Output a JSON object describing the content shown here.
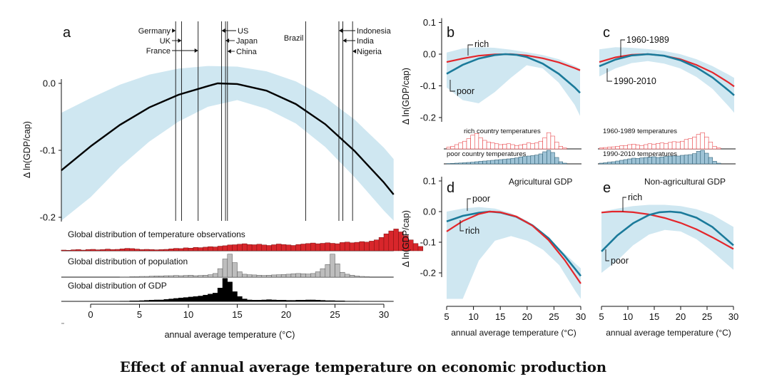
{
  "caption": "Effect of annual average temperature on economic production",
  "colors": {
    "band": "#cfe7f1",
    "main_curve": "#000000",
    "teal": "#1b7a9a",
    "red": "#e4262b",
    "hist_temp": "#d8262b",
    "hist_pop": "#bdbdbd",
    "hist_gdp": "#000000",
    "hist_poor": "#9ec3d6"
  },
  "chart_data": [
    {
      "panel": "a",
      "type": "line",
      "xlabel": "annual average temperature (°C)",
      "ylabel": "Δ ln(GDP/cap)",
      "xlim": [
        -3,
        31
      ],
      "ylim": [
        -0.205,
        0.035
      ],
      "xticks": [
        0,
        5,
        10,
        15,
        20,
        25,
        30
      ],
      "yticks": [
        0.0,
        -0.1,
        -0.2
      ],
      "ytick_labels": [
        "0.0",
        "-0.1",
        "-0.2"
      ],
      "series": [
        {
          "x": [
            -3,
            0,
            3,
            6,
            9,
            12,
            13,
            15,
            18,
            21,
            24,
            27,
            30,
            31
          ],
          "y": [
            -0.13,
            -0.094,
            -0.062,
            -0.036,
            -0.017,
            -0.004,
            -0.0,
            -0.001,
            -0.011,
            -0.031,
            -0.061,
            -0.101,
            -0.148,
            -0.166
          ]
        }
      ],
      "confidence_band": {
        "x": [
          -3,
          0,
          3,
          6,
          9,
          12,
          15,
          18,
          21,
          24,
          27,
          30,
          31
        ],
        "upper": [
          -0.044,
          -0.022,
          -0.002,
          0.013,
          0.022,
          0.026,
          0.025,
          0.018,
          0.003,
          -0.021,
          -0.054,
          -0.096,
          -0.113
        ],
        "lower": [
          -0.205,
          -0.17,
          -0.125,
          -0.087,
          -0.057,
          -0.035,
          -0.025,
          -0.038,
          -0.06,
          -0.095,
          -0.14,
          -0.19,
          -0.205
        ]
      },
      "countries": [
        {
          "name": "Germany",
          "temp": 8.7
        },
        {
          "name": "UK",
          "temp": 9.3
        },
        {
          "name": "France",
          "temp": 11.0
        },
        {
          "name": "US",
          "temp": 13.4
        },
        {
          "name": "Japan",
          "temp": 13.8
        },
        {
          "name": "China",
          "temp": 14.0
        },
        {
          "name": "Brazil",
          "temp": 22.0
        },
        {
          "name": "Indonesia",
          "temp": 25.4
        },
        {
          "name": "India",
          "temp": 25.8
        },
        {
          "name": "Nigeria",
          "temp": 26.8
        }
      ],
      "distributions": [
        {
          "label": "Global distribution of temperature observations",
          "bins_start": -3,
          "bin_width": 0.5,
          "heights": [
            0.03,
            0.02,
            0.04,
            0.05,
            0.03,
            0.05,
            0.06,
            0.04,
            0.05,
            0.07,
            0.05,
            0.06,
            0.08,
            0.1,
            0.09,
            0.07,
            0.05,
            0.06,
            0.05,
            0.04,
            0.05,
            0.06,
            0.08,
            0.1,
            0.09,
            0.12,
            0.11,
            0.14,
            0.13,
            0.15,
            0.17,
            0.16,
            0.19,
            0.21,
            0.24,
            0.25,
            0.27,
            0.29,
            0.26,
            0.25,
            0.27,
            0.24,
            0.22,
            0.25,
            0.28,
            0.26,
            0.24,
            0.22,
            0.26,
            0.28,
            0.3,
            0.32,
            0.29,
            0.31,
            0.33,
            0.31,
            0.29,
            0.34,
            0.36,
            0.33,
            0.35,
            0.38,
            0.36,
            0.4,
            0.45,
            0.55,
            0.7,
            0.82,
            0.9,
            0.78,
            0.62,
            0.45,
            0.3,
            0.18
          ]
        },
        {
          "label": "Global distribution of population",
          "bins_start": 3,
          "bin_width": 0.5,
          "heights": [
            0.01,
            0.01,
            0.02,
            0.02,
            0.03,
            0.03,
            0.04,
            0.05,
            0.05,
            0.06,
            0.06,
            0.07,
            0.06,
            0.07,
            0.08,
            0.06,
            0.07,
            0.08,
            0.1,
            0.15,
            0.35,
            0.75,
            0.95,
            0.6,
            0.22,
            0.12,
            0.1,
            0.09,
            0.08,
            0.07,
            0.08,
            0.09,
            0.1,
            0.11,
            0.12,
            0.14,
            0.15,
            0.14,
            0.13,
            0.15,
            0.22,
            0.35,
            0.52,
            0.95,
            0.55,
            0.2,
            0.12,
            0.08,
            0.05,
            0.03,
            0.02
          ]
        },
        {
          "label": "Global distribution of GDP",
          "bins_start": 3,
          "bin_width": 0.5,
          "heights": [
            0.01,
            0.01,
            0.02,
            0.02,
            0.03,
            0.04,
            0.05,
            0.06,
            0.06,
            0.08,
            0.1,
            0.12,
            0.14,
            0.16,
            0.18,
            0.2,
            0.22,
            0.26,
            0.3,
            0.34,
            0.55,
            0.95,
            0.8,
            0.4,
            0.2,
            0.1,
            0.06,
            0.05,
            0.05,
            0.06,
            0.07,
            0.06,
            0.05,
            0.05,
            0.04,
            0.04,
            0.05,
            0.05,
            0.06,
            0.06,
            0.05,
            0.04,
            0.03,
            0.03,
            0.02,
            0.02,
            0.01,
            0.01,
            0.01
          ]
        }
      ]
    },
    {
      "panel": "b",
      "type": "line",
      "ylabel": "Δ ln(GDP/cap)",
      "xlim": [
        5,
        30
      ],
      "ylim": [
        -0.235,
        0.115
      ],
      "yticks": [
        0.1,
        0.0,
        -0.1,
        -0.2
      ],
      "ytick_labels": [
        "0.1",
        "0.0",
        "-0.1",
        "-0.2"
      ],
      "series": [
        {
          "name": "rich",
          "color": "red",
          "x": [
            5,
            8,
            11,
            14,
            17,
            20,
            23,
            26,
            29,
            30
          ],
          "y": [
            -0.025,
            -0.014,
            -0.005,
            -0.001,
            0.0,
            -0.004,
            -0.013,
            -0.026,
            -0.044,
            -0.051
          ]
        },
        {
          "name": "poor",
          "color": "teal",
          "x": [
            5,
            8,
            11,
            14,
            16,
            18,
            20,
            23,
            26,
            29,
            30
          ],
          "y": [
            -0.062,
            -0.034,
            -0.014,
            -0.003,
            0.0,
            -0.002,
            -0.009,
            -0.03,
            -0.062,
            -0.105,
            -0.122
          ]
        }
      ],
      "confidence_band": {
        "x": [
          5,
          8,
          11,
          14,
          17,
          20,
          23,
          26,
          29,
          30
        ],
        "upper": [
          0.005,
          0.018,
          0.022,
          0.02,
          0.014,
          0.006,
          -0.003,
          -0.016,
          -0.037,
          -0.046
        ],
        "lower": [
          -0.105,
          -0.145,
          -0.155,
          -0.12,
          -0.075,
          -0.035,
          -0.045,
          -0.09,
          -0.16,
          -0.195
        ]
      },
      "distributions": [
        {
          "label": "rich country temperatures",
          "color": "red",
          "bins_start": 5,
          "bin_width": 0.75,
          "heights": [
            0.1,
            0.15,
            0.25,
            0.35,
            0.45,
            0.6,
            0.8,
            0.9,
            0.65,
            0.5,
            0.4,
            0.35,
            0.3,
            0.25,
            0.28,
            0.3,
            0.25,
            0.2,
            0.22,
            0.28,
            0.35,
            0.3,
            0.35,
            0.45,
            0.65,
            0.95,
            0.75,
            0.4,
            0.15,
            0.05
          ]
        },
        {
          "label": "poor country temperatures",
          "color": "teal",
          "bins_start": 5,
          "bin_width": 0.75,
          "heights": [
            0.02,
            0.03,
            0.05,
            0.06,
            0.08,
            0.1,
            0.12,
            0.15,
            0.18,
            0.2,
            0.22,
            0.25,
            0.28,
            0.3,
            0.32,
            0.35,
            0.38,
            0.42,
            0.48,
            0.52,
            0.55,
            0.58,
            0.62,
            0.7,
            0.85,
            0.95,
            0.8,
            0.45,
            0.15,
            0.05
          ]
        }
      ]
    },
    {
      "panel": "c",
      "type": "line",
      "xlim": [
        5,
        30
      ],
      "ylim": [
        -0.235,
        0.115
      ],
      "series": [
        {
          "name": "1960-1989",
          "color": "red",
          "x": [
            5,
            8,
            11,
            14,
            17,
            20,
            23,
            26,
            29,
            30
          ],
          "y": [
            -0.025,
            -0.01,
            -0.002,
            -0.0,
            -0.005,
            -0.016,
            -0.034,
            -0.058,
            -0.09,
            -0.102
          ]
        },
        {
          "name": "1990-2010",
          "color": "teal",
          "x": [
            5,
            8,
            11,
            14,
            17,
            20,
            23,
            26,
            29,
            30
          ],
          "y": [
            -0.038,
            -0.017,
            -0.004,
            0.0,
            -0.005,
            -0.019,
            -0.042,
            -0.074,
            -0.115,
            -0.13
          ]
        }
      ],
      "confidence_band": {
        "x": [
          5,
          8,
          11,
          14,
          17,
          20,
          23,
          26,
          29,
          30
        ],
        "upper": [
          0.015,
          0.022,
          0.02,
          0.016,
          0.01,
          0.0,
          -0.016,
          -0.038,
          -0.065,
          -0.075
        ],
        "lower": [
          -0.07,
          -0.045,
          -0.028,
          -0.022,
          -0.03,
          -0.045,
          -0.072,
          -0.11,
          -0.165,
          -0.185
        ]
      },
      "distributions": [
        {
          "label": "1960-1989 temperatures",
          "color": "red",
          "bins_start": 5,
          "bin_width": 0.75,
          "heights": [
            0.05,
            0.08,
            0.1,
            0.12,
            0.15,
            0.18,
            0.2,
            0.25,
            0.28,
            0.22,
            0.2,
            0.25,
            0.3,
            0.28,
            0.32,
            0.35,
            0.3,
            0.38,
            0.42,
            0.4,
            0.45,
            0.55,
            0.6,
            0.7,
            0.85,
            0.95,
            0.7,
            0.4,
            0.15,
            0.05
          ]
        },
        {
          "label": "1990-2010 temperatures",
          "color": "teal",
          "bins_start": 5,
          "bin_width": 0.75,
          "heights": [
            0.05,
            0.08,
            0.12,
            0.15,
            0.2,
            0.25,
            0.3,
            0.35,
            0.4,
            0.38,
            0.42,
            0.45,
            0.48,
            0.5,
            0.45,
            0.48,
            0.52,
            0.55,
            0.58,
            0.55,
            0.6,
            0.62,
            0.65,
            0.72,
            0.88,
            0.95,
            0.75,
            0.45,
            0.18,
            0.05
          ]
        }
      ]
    },
    {
      "panel": "d",
      "type": "line",
      "title": "Agricultural GDP",
      "xlabel": "annual average temperature (°C)",
      "ylabel": "Δ ln(GDP/cap)",
      "xlim": [
        5,
        30
      ],
      "ylim": [
        -0.285,
        0.115
      ],
      "xticks": [
        5,
        10,
        15,
        20,
        25,
        30
      ],
      "yticks": [
        0.1,
        0.0,
        -0.1,
        -0.2
      ],
      "ytick_labels": [
        "0.1",
        "0.0",
        "-0.1",
        "-0.2"
      ],
      "series": [
        {
          "name": "poor",
          "color": "teal",
          "x": [
            5,
            8,
            11,
            13,
            15,
            18,
            21,
            24,
            27,
            30
          ],
          "y": [
            -0.032,
            -0.014,
            -0.004,
            0.0,
            -0.003,
            -0.017,
            -0.045,
            -0.087,
            -0.145,
            -0.21
          ]
        },
        {
          "name": "rich",
          "color": "red",
          "x": [
            5,
            8,
            11,
            13,
            15,
            18,
            21,
            24,
            27,
            30
          ],
          "y": [
            -0.065,
            -0.031,
            -0.008,
            0.0,
            -0.002,
            -0.016,
            -0.046,
            -0.093,
            -0.158,
            -0.235
          ]
        }
      ],
      "confidence_band": {
        "x": [
          5,
          8,
          11,
          14,
          17,
          20,
          23,
          26,
          29,
          30
        ],
        "upper": [
          0.0,
          0.01,
          0.015,
          0.01,
          -0.005,
          -0.03,
          -0.07,
          -0.12,
          -0.17,
          -0.185
        ],
        "lower": [
          -0.285,
          -0.285,
          -0.16,
          -0.095,
          -0.08,
          -0.095,
          -0.125,
          -0.175,
          -0.26,
          -0.285
        ]
      }
    },
    {
      "panel": "e",
      "type": "line",
      "title": "Non-agricultural GDP",
      "xlabel": "annual average temperature (°C)",
      "xlim": [
        5,
        30
      ],
      "ylim": [
        -0.285,
        0.115
      ],
      "xticks": [
        5,
        10,
        15,
        20,
        25,
        30
      ],
      "series": [
        {
          "name": "rich",
          "color": "red",
          "x": [
            5,
            7,
            9,
            11,
            14,
            17,
            20,
            23,
            26,
            30
          ],
          "y": [
            -0.003,
            0.0,
            0.0,
            -0.002,
            -0.009,
            -0.021,
            -0.037,
            -0.058,
            -0.084,
            -0.122
          ]
        },
        {
          "name": "poor",
          "color": "teal",
          "x": [
            5,
            8,
            11,
            14,
            16,
            18,
            20,
            23,
            26,
            30
          ],
          "y": [
            -0.13,
            -0.078,
            -0.038,
            -0.011,
            -0.002,
            0.0,
            -0.003,
            -0.02,
            -0.05,
            -0.11
          ]
        }
      ],
      "confidence_band": {
        "x": [
          5,
          8,
          11,
          14,
          17,
          20,
          23,
          26,
          30
        ],
        "upper": [
          0.0,
          0.01,
          0.018,
          0.022,
          0.022,
          0.018,
          0.008,
          -0.01,
          -0.05
        ],
        "lower": [
          -0.2,
          -0.16,
          -0.11,
          -0.075,
          -0.06,
          -0.065,
          -0.09,
          -0.13,
          -0.19
        ]
      }
    }
  ]
}
